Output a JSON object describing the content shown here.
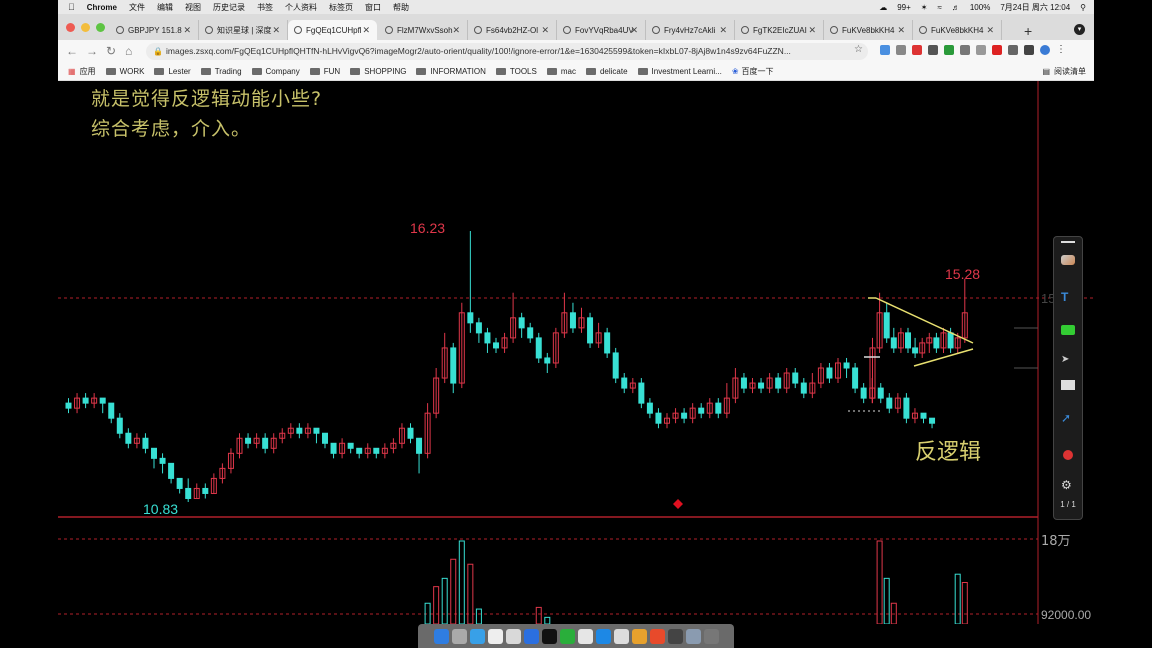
{
  "menubar": {
    "app": "Chrome",
    "items": [
      "文件",
      "编辑",
      "视图",
      "历史记录",
      "书签",
      "个人资料",
      "标签页",
      "窗口",
      "帮助"
    ],
    "status": {
      "notifications": "99+",
      "battery": "100%",
      "datetime": "7月24日 周六 12:04"
    }
  },
  "tabs": [
    {
      "label": "GBPJPY 151.8"
    },
    {
      "label": "知识星球 | 深度"
    },
    {
      "label": "FgQEq1CUHpfl"
    },
    {
      "label": "FlzM7WxvSsoh"
    },
    {
      "label": "Fs64vb2HZ-Ol"
    },
    {
      "label": "FovYVqRba4UV"
    },
    {
      "label": "Fry4vHz7cAkIi"
    },
    {
      "label": "FgTK2EIcZUAI"
    },
    {
      "label": "FuKVe8bkKH4"
    },
    {
      "label": "FuKVe8bkKH4"
    }
  ],
  "toolbar": {
    "url": "images.zsxq.com/FgQEq1CUHpflQHTfN-hLHvVigvQ6?imageMogr2/auto-orient/quality/100!/ignore-error/1&e=1630425599&token=kIxbL07-8jAj8w1n4s9zv64FuZZN..."
  },
  "bookmarks": {
    "apps_label": "应用",
    "items": [
      "WORK",
      "Lester",
      "Trading",
      "Company",
      "FUN",
      "SHOPPING",
      "INFORMATION",
      "TOOLS",
      "mac",
      "delicate",
      "Investment Learni...",
      "百度一下"
    ],
    "reading_list": "阅读清单"
  },
  "annotation": {
    "line1": "就是觉得反逻辑动能小些?",
    "line2": "综合考虑，介入。",
    "pattern_label": "反逻辑"
  },
  "chart_data": {
    "type": "candlestick",
    "price_labels": {
      "high": "16.23",
      "low": "10.83",
      "recent_high": "15.28",
      "axis_tick": "15.0"
    },
    "volume_axis": [
      "18万",
      "92000.00"
    ],
    "candles": [
      [
        12.8,
        12.7,
        12.9,
        12.6
      ],
      [
        12.7,
        12.9,
        13.0,
        12.6
      ],
      [
        12.9,
        12.8,
        13.0,
        12.7
      ],
      [
        12.8,
        12.9,
        13.0,
        12.7
      ],
      [
        12.9,
        12.8,
        12.9,
        12.6
      ],
      [
        12.8,
        12.5,
        12.8,
        12.4
      ],
      [
        12.5,
        12.2,
        12.6,
        12.1
      ],
      [
        12.2,
        12.0,
        12.3,
        11.9
      ],
      [
        12.0,
        12.1,
        12.2,
        11.9
      ],
      [
        12.1,
        11.9,
        12.2,
        11.8
      ],
      [
        11.9,
        11.7,
        11.9,
        11.5
      ],
      [
        11.7,
        11.6,
        11.8,
        11.4
      ],
      [
        11.6,
        11.3,
        11.6,
        11.2
      ],
      [
        11.3,
        11.1,
        11.3,
        11.0
      ],
      [
        11.1,
        10.9,
        11.3,
        10.83
      ],
      [
        10.9,
        11.1,
        11.2,
        10.9
      ],
      [
        11.1,
        11.0,
        11.2,
        10.9
      ],
      [
        11.0,
        11.3,
        11.4,
        11.0
      ],
      [
        11.3,
        11.5,
        11.6,
        11.2
      ],
      [
        11.5,
        11.8,
        11.9,
        11.4
      ],
      [
        11.8,
        12.1,
        12.2,
        11.7
      ],
      [
        12.1,
        12.0,
        12.2,
        11.9
      ],
      [
        12.0,
        12.1,
        12.2,
        11.9
      ],
      [
        12.1,
        11.9,
        12.2,
        11.8
      ],
      [
        11.9,
        12.1,
        12.2,
        11.8
      ],
      [
        12.1,
        12.2,
        12.3,
        12.0
      ],
      [
        12.2,
        12.3,
        12.4,
        12.1
      ],
      [
        12.3,
        12.2,
        12.4,
        12.1
      ],
      [
        12.2,
        12.3,
        12.4,
        12.1
      ],
      [
        12.3,
        12.2,
        12.3,
        12.0
      ],
      [
        12.2,
        12.0,
        12.2,
        11.9
      ],
      [
        12.0,
        11.8,
        12.0,
        11.7
      ],
      [
        11.8,
        12.0,
        12.1,
        11.7
      ],
      [
        12.0,
        11.9,
        12.0,
        11.8
      ],
      [
        11.9,
        11.8,
        11.9,
        11.7
      ],
      [
        11.8,
        11.9,
        12.0,
        11.7
      ],
      [
        11.9,
        11.8,
        11.9,
        11.7
      ],
      [
        11.8,
        11.9,
        12.0,
        11.7
      ],
      [
        11.9,
        12.0,
        12.1,
        11.8
      ],
      [
        12.0,
        12.3,
        12.4,
        11.9
      ],
      [
        12.3,
        12.1,
        12.4,
        12.0
      ],
      [
        12.1,
        11.8,
        12.1,
        11.4
      ],
      [
        11.8,
        12.6,
        12.8,
        11.7
      ],
      [
        12.6,
        13.3,
        13.5,
        12.5
      ],
      [
        13.3,
        13.9,
        14.2,
        13.2
      ],
      [
        13.9,
        13.2,
        14.0,
        13.0
      ],
      [
        13.2,
        14.6,
        14.8,
        13.1
      ],
      [
        14.6,
        14.4,
        16.23,
        14.2
      ],
      [
        14.4,
        14.2,
        14.5,
        14.0
      ],
      [
        14.2,
        14.0,
        14.3,
        13.8
      ],
      [
        14.0,
        13.9,
        14.1,
        13.8
      ],
      [
        13.9,
        14.1,
        14.2,
        13.8
      ],
      [
        14.1,
        14.5,
        15.0,
        14.0
      ],
      [
        14.5,
        14.3,
        14.6,
        14.1
      ],
      [
        14.3,
        14.1,
        14.4,
        14.0
      ],
      [
        14.1,
        13.7,
        14.2,
        13.6
      ],
      [
        13.7,
        13.6,
        13.8,
        13.4
      ],
      [
        13.6,
        14.2,
        14.3,
        13.5
      ],
      [
        14.2,
        14.6,
        15.0,
        14.1
      ],
      [
        14.6,
        14.3,
        14.8,
        14.2
      ],
      [
        14.3,
        14.5,
        14.7,
        14.2
      ],
      [
        14.5,
        14.0,
        14.6,
        13.9
      ],
      [
        14.0,
        14.2,
        14.4,
        13.9
      ],
      [
        14.2,
        13.8,
        14.3,
        13.7
      ],
      [
        13.8,
        13.3,
        13.9,
        13.2
      ],
      [
        13.3,
        13.1,
        13.4,
        13.0
      ],
      [
        13.1,
        13.2,
        13.3,
        13.0
      ],
      [
        13.2,
        12.8,
        13.3,
        12.7
      ],
      [
        12.8,
        12.6,
        12.9,
        12.5
      ],
      [
        12.6,
        12.4,
        12.7,
        12.3
      ],
      [
        12.4,
        12.5,
        12.6,
        12.3
      ],
      [
        12.5,
        12.6,
        12.7,
        12.4
      ],
      [
        12.6,
        12.5,
        12.7,
        12.4
      ],
      [
        12.5,
        12.7,
        12.8,
        12.4
      ],
      [
        12.7,
        12.6,
        12.8,
        12.5
      ],
      [
        12.6,
        12.8,
        12.9,
        12.5
      ],
      [
        12.8,
        12.6,
        12.9,
        12.5
      ],
      [
        12.6,
        12.9,
        13.2,
        12.5
      ],
      [
        12.9,
        13.3,
        13.5,
        12.8
      ],
      [
        13.3,
        13.1,
        13.4,
        13.0
      ],
      [
        13.1,
        13.2,
        13.3,
        13.0
      ],
      [
        13.2,
        13.1,
        13.3,
        13.0
      ],
      [
        13.1,
        13.3,
        13.4,
        13.0
      ],
      [
        13.3,
        13.1,
        13.4,
        13.0
      ],
      [
        13.1,
        13.4,
        13.5,
        13.0
      ],
      [
        13.4,
        13.2,
        13.5,
        13.1
      ],
      [
        13.2,
        13.0,
        13.3,
        12.9
      ],
      [
        13.0,
        13.2,
        13.4,
        12.9
      ],
      [
        13.2,
        13.5,
        13.6,
        13.1
      ],
      [
        13.5,
        13.3,
        13.6,
        13.2
      ],
      [
        13.3,
        13.6,
        13.7,
        13.2
      ],
      [
        13.6,
        13.5,
        13.7,
        13.3
      ],
      [
        13.5,
        13.1,
        13.6,
        13.0
      ],
      [
        13.1,
        12.9,
        13.2,
        12.8
      ],
      [
        12.9,
        13.1,
        13.3,
        12.8
      ],
      [
        13.1,
        12.9,
        13.2,
        12.8
      ],
      [
        12.9,
        12.7,
        13.0,
        12.6
      ],
      [
        12.7,
        12.9,
        13.0,
        12.6
      ],
      [
        12.9,
        12.5,
        13.0,
        12.4
      ],
      [
        12.5,
        12.6,
        12.7,
        12.4
      ],
      [
        12.6,
        12.5,
        12.6,
        12.4
      ],
      [
        12.5,
        12.4,
        12.5,
        12.3
      ],
      [
        12.9,
        13.9,
        14.1,
        12.8
      ],
      [
        13.9,
        14.6,
        15.0,
        13.8
      ],
      [
        14.6,
        14.1,
        14.8,
        14.0
      ],
      [
        14.1,
        13.9,
        14.3,
        13.8
      ],
      [
        13.9,
        14.2,
        14.3,
        13.8
      ],
      [
        14.2,
        13.9,
        14.3,
        13.8
      ],
      [
        13.9,
        13.8,
        14.1,
        13.7
      ],
      [
        13.8,
        14.0,
        14.1,
        13.7
      ],
      [
        14.0,
        14.1,
        14.2,
        13.8
      ],
      [
        14.1,
        13.9,
        14.2,
        13.8
      ],
      [
        13.9,
        14.2,
        14.3,
        13.8
      ],
      [
        14.2,
        13.9,
        14.3,
        13.8
      ],
      [
        13.9,
        14.1,
        14.2,
        13.8
      ],
      [
        14.1,
        14.6,
        15.28,
        14.0
      ]
    ],
    "volumes": [
      {
        "index": 42,
        "value": 0.25
      },
      {
        "index": 43,
        "value": 0.45
      },
      {
        "index": 44,
        "value": 0.55
      },
      {
        "index": 45,
        "value": 0.78
      },
      {
        "index": 46,
        "value": 1.0
      },
      {
        "index": 47,
        "value": 0.72
      },
      {
        "index": 48,
        "value": 0.18
      },
      {
        "index": 55,
        "value": 0.2
      },
      {
        "index": 56,
        "value": 0.08
      },
      {
        "index": 103,
        "value": 1.0
      },
      {
        "index": 104,
        "value": 0.55
      },
      {
        "index": 105,
        "value": 0.25
      },
      {
        "index": 114,
        "value": 0.6
      },
      {
        "index": 115,
        "value": 0.5
      }
    ]
  },
  "drawing_toolbar": {
    "page": "1 / 1"
  },
  "colors": {
    "up": "#e0374a",
    "down": "#38e0d4",
    "annotation": "#c8c26a",
    "pattern": "#e8e070",
    "grid": "#b0202a"
  }
}
